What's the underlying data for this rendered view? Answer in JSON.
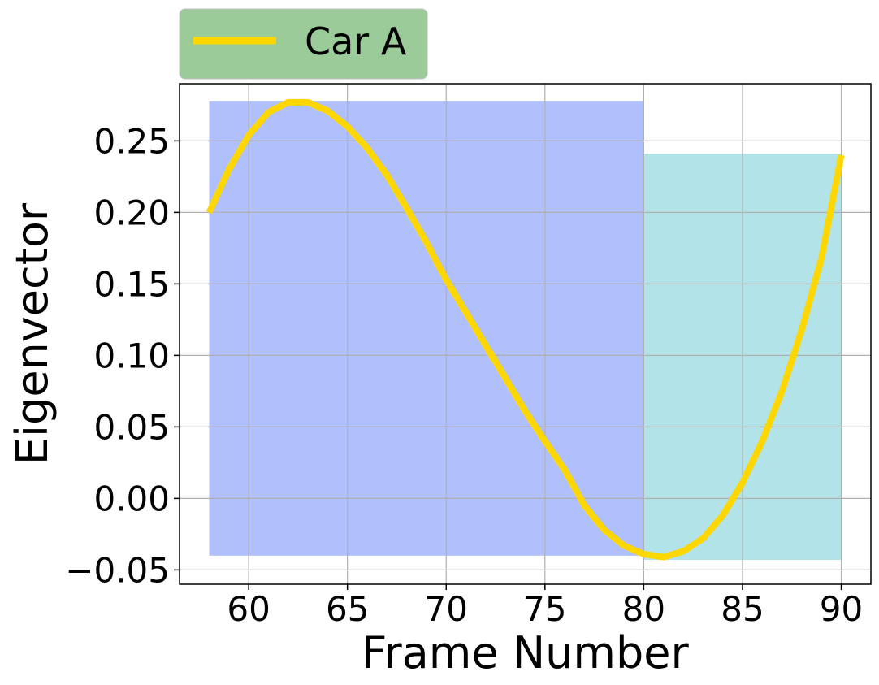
{
  "chart_data": {
    "type": "line",
    "title": "",
    "xlabel": "Frame Number",
    "ylabel": "Eigenvector",
    "xlim": [
      56.5,
      91.5
    ],
    "ylim": [
      -0.06,
      0.29
    ],
    "x_ticks": [
      60,
      65,
      70,
      75,
      80,
      85,
      90
    ],
    "x_tick_labels": [
      "60",
      "65",
      "70",
      "75",
      "80",
      "85",
      "90"
    ],
    "y_ticks": [
      -0.05,
      0.0,
      0.05,
      0.1,
      0.15,
      0.2,
      0.25
    ],
    "y_tick_labels": [
      "−0.05",
      "0.00",
      "0.05",
      "0.10",
      "0.15",
      "0.20",
      "0.25"
    ],
    "grid": true,
    "legend_position": "above-left",
    "regions": [
      {
        "x0": 58,
        "x1": 80,
        "y0": -0.04,
        "y1": 0.278,
        "color": "#b0c0fc"
      },
      {
        "x0": 80,
        "x1": 90,
        "y0": -0.043,
        "y1": 0.241,
        "color": "#b2e3e8"
      }
    ],
    "series": [
      {
        "name": "Car A",
        "color": "#ffd700",
        "x": [
          58,
          59,
          60,
          61,
          62,
          63,
          64,
          65,
          66,
          67,
          68,
          69,
          70,
          71,
          72,
          73,
          74,
          75,
          76,
          77,
          78,
          79,
          80,
          81,
          82,
          83,
          84,
          85,
          86,
          87,
          88,
          89,
          90
        ],
        "y": [
          0.2,
          0.23,
          0.254,
          0.27,
          0.277,
          0.277,
          0.271,
          0.26,
          0.245,
          0.226,
          0.203,
          0.179,
          0.153,
          0.13,
          0.107,
          0.084,
          0.061,
          0.04,
          0.02,
          -0.005,
          -0.022,
          -0.033,
          -0.039,
          -0.041,
          -0.037,
          -0.028,
          -0.012,
          0.011,
          0.04,
          0.075,
          0.118,
          0.168,
          0.24
        ]
      }
    ],
    "legend_bg": "#9acb98"
  }
}
